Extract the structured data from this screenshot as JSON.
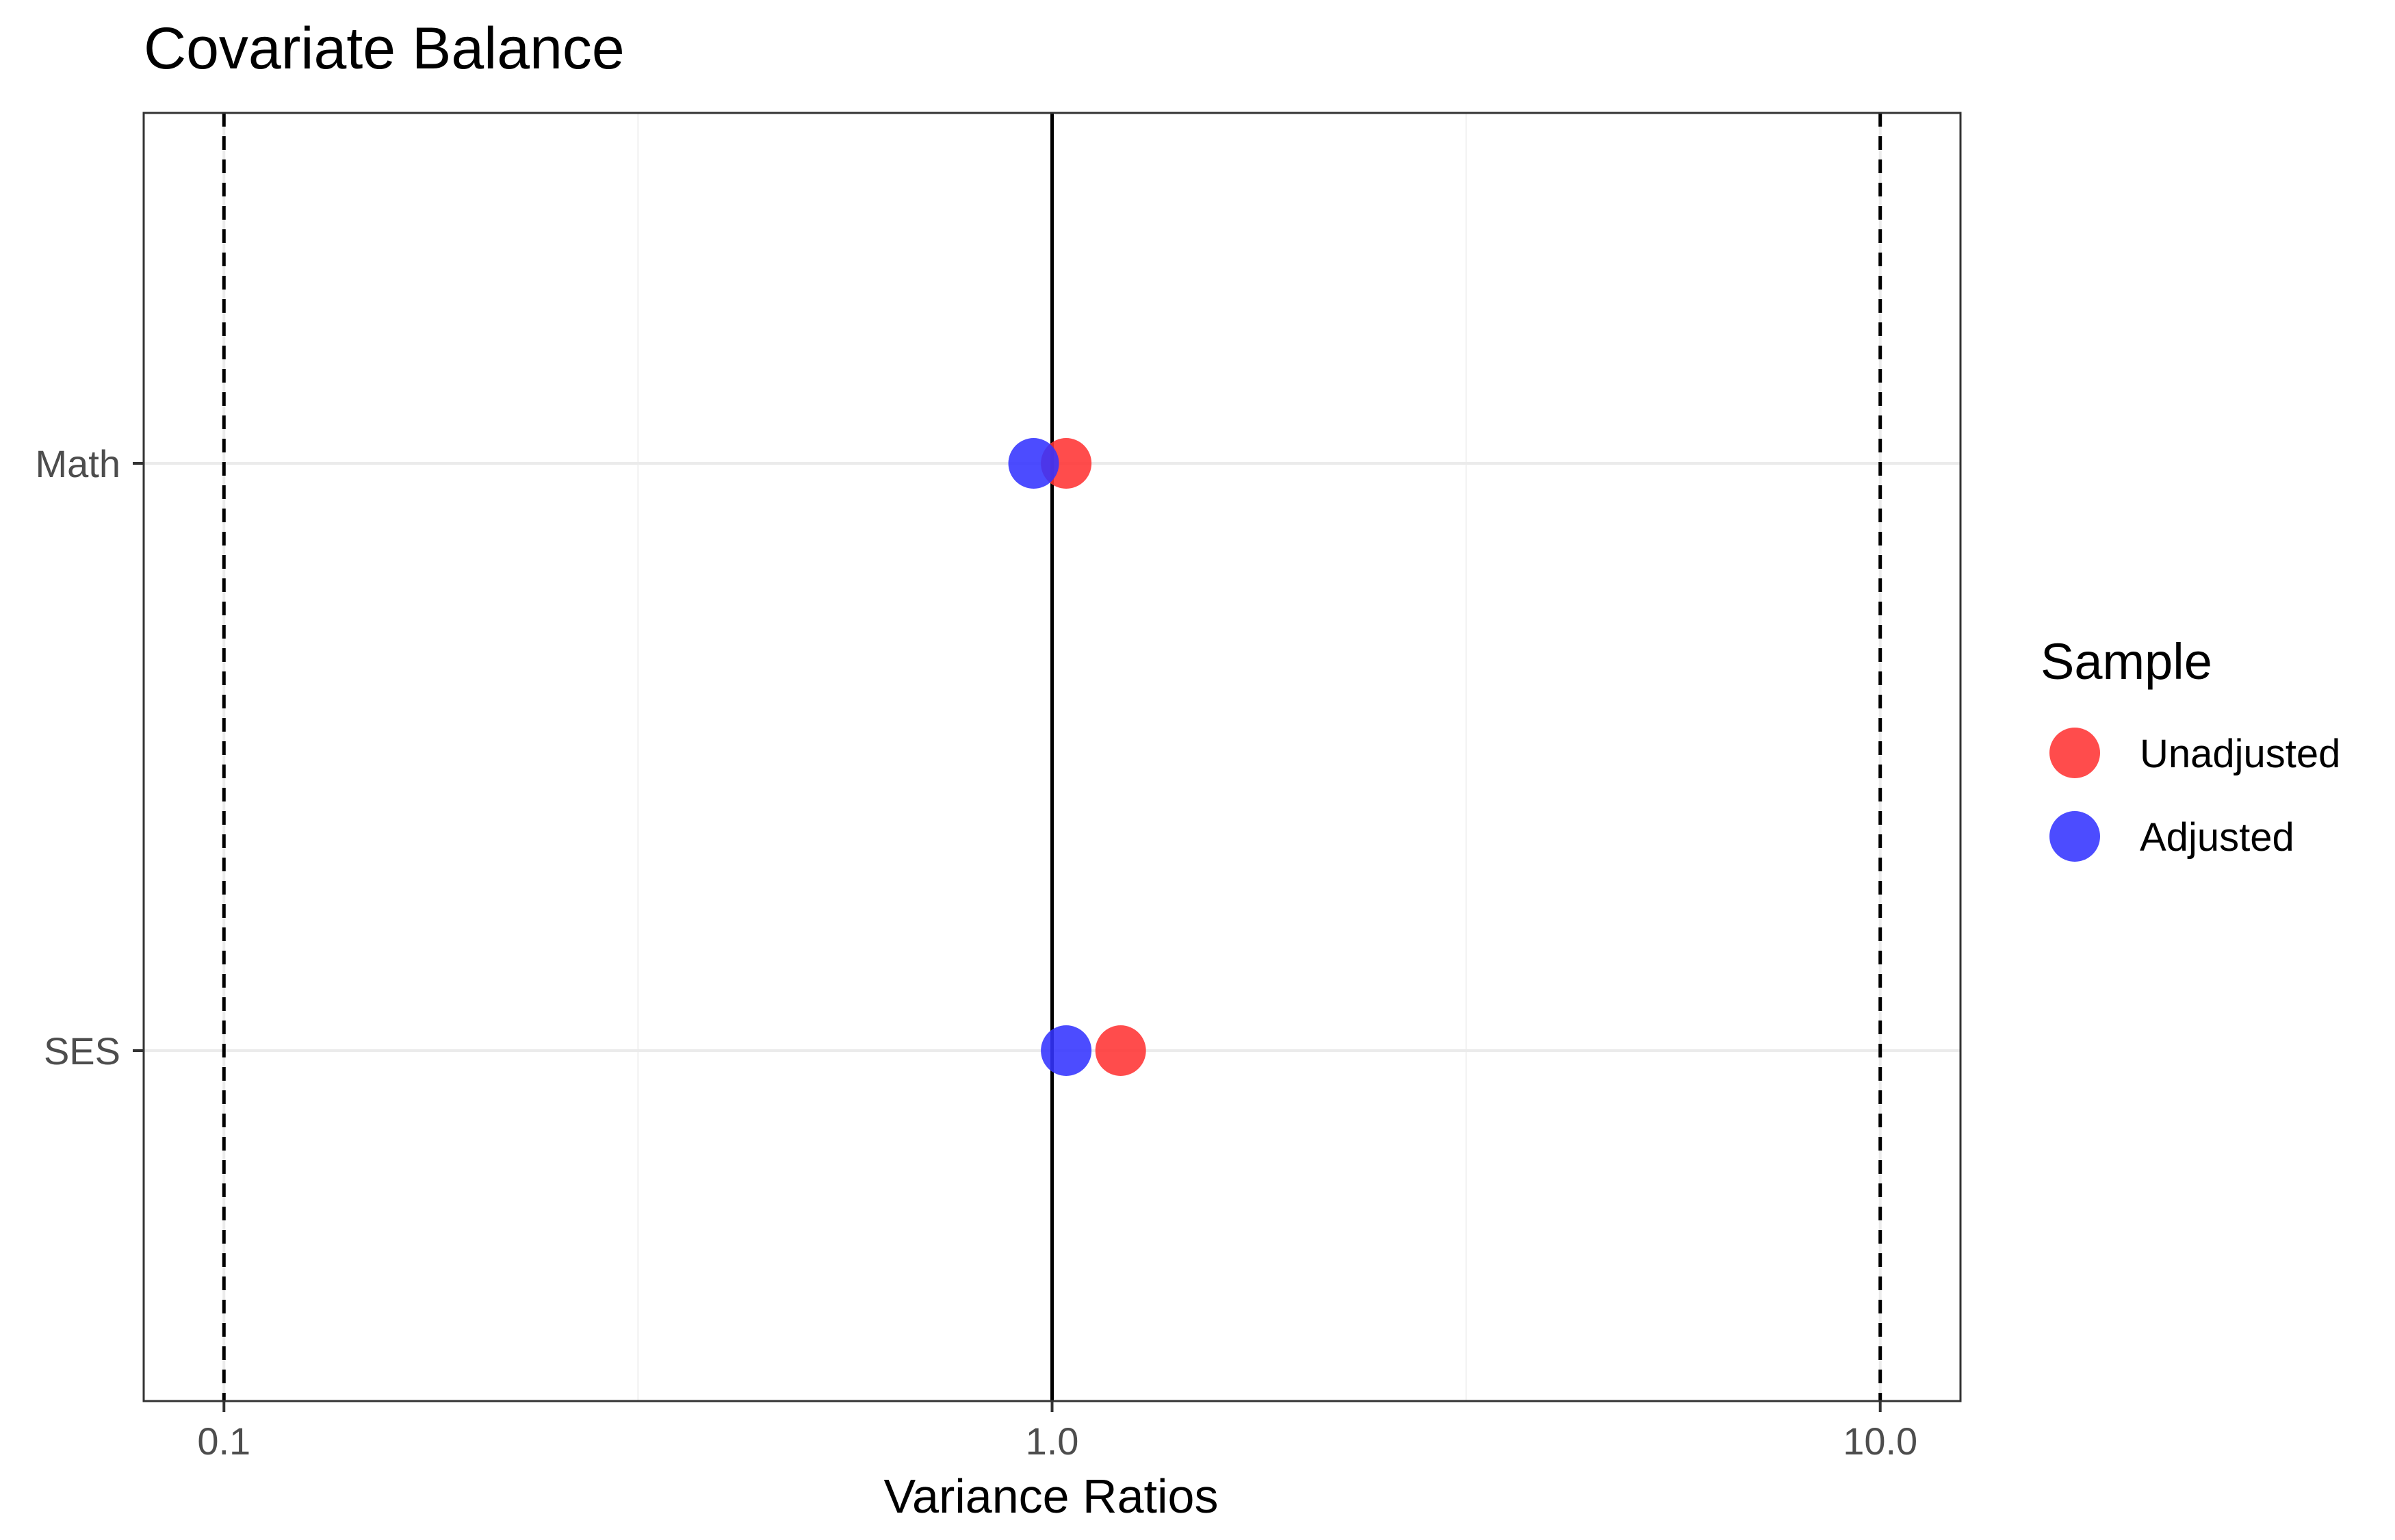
{
  "chart_data": {
    "type": "scatter",
    "title": "Covariate Balance",
    "xlabel": "Variance Ratios",
    "ylabel": "",
    "x_scale": "log10",
    "xlim": [
      0.08,
      12.5
    ],
    "x_ticks": [
      {
        "value": 0.1,
        "label": "0.1"
      },
      {
        "value": 1.0,
        "label": "1.0"
      },
      {
        "value": 10.0,
        "label": "10.0"
      }
    ],
    "categories": [
      "Math",
      "SES"
    ],
    "series": [
      {
        "name": "Unadjusted",
        "color": "#ff3333",
        "values": [
          1.04,
          1.21
        ]
      },
      {
        "name": "Adjusted",
        "color": "#3333ff",
        "values": [
          0.95,
          1.04
        ]
      }
    ],
    "reference_lines": {
      "solid": [
        1.0
      ],
      "dashed": [
        0.1,
        10.0
      ]
    },
    "grid": true,
    "legend": {
      "title": "Sample",
      "placement": "right",
      "entries": [
        "Unadjusted",
        "Adjusted"
      ]
    }
  }
}
